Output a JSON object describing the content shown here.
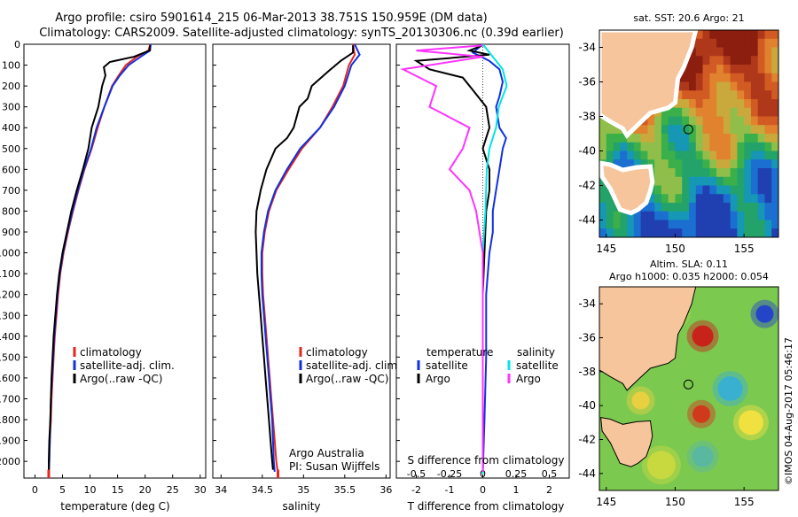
{
  "header": {
    "line1": "Argo profile: csiro 5901614_215 06-Mar-2013 38.751S 150.959E (DM data)",
    "line2": "Climatology: CARS2009. Satellite-adjusted climatology: synTS_20130306.nc (0.39d earlier)"
  },
  "colors": {
    "climatology": "#e8251c",
    "satellite": "#1030e0",
    "argo": "#000000",
    "sat_salinity": "#00e5e5",
    "argo_salinity": "#ff33ff",
    "land": "#f7c59b"
  },
  "credits": {
    "line1": "Argo Australia",
    "line2": "PI: Susan Wijffels"
  },
  "stamp": "©IMOS 04-Aug-2017 05:46:17",
  "chart_data": [
    {
      "type": "line",
      "xlabel": "temperature (deg C)",
      "xticks": [
        "0",
        "5",
        "10",
        "15",
        "20",
        "25",
        "30"
      ],
      "xlim": [
        -2,
        31
      ],
      "ylim": [
        0,
        2080
      ],
      "yticks": [
        "0",
        "100",
        "200",
        "300",
        "400",
        "500",
        "600",
        "700",
        "800",
        "900",
        "1000",
        "1100",
        "1200",
        "1300",
        "1400",
        "1500",
        "1600",
        "1700",
        "1800",
        "1900",
        "2000"
      ],
      "legend": [
        "climatology",
        "satellite-adj. clim.",
        "Argo(..raw -QC)"
      ],
      "series": [
        {
          "name": "climatology",
          "color": "#e8251c",
          "points": [
            [
              20.9,
              0
            ],
            [
              20.6,
              30
            ],
            [
              18.5,
              60
            ],
            [
              16.5,
              100
            ],
            [
              15.2,
              150
            ],
            [
              14.0,
              200
            ],
            [
              12.6,
              300
            ],
            [
              11.4,
              400
            ],
            [
              10.3,
              500
            ],
            [
              9.0,
              600
            ],
            [
              7.9,
              700
            ],
            [
              6.9,
              800
            ],
            [
              6.0,
              900
            ],
            [
              5.2,
              1000
            ],
            [
              4.6,
              1100
            ],
            [
              4.2,
              1200
            ],
            [
              3.9,
              1300
            ],
            [
              3.6,
              1400
            ],
            [
              3.4,
              1500
            ],
            [
              3.2,
              1600
            ],
            [
              3.0,
              1700
            ],
            [
              2.9,
              1800
            ],
            [
              2.7,
              1900
            ],
            [
              2.6,
              2000
            ],
            [
              2.5,
              2060
            ]
          ]
        },
        {
          "name": "satellite-adj. clim.",
          "color": "#1030e0",
          "points": [
            [
              21.0,
              0
            ],
            [
              20.9,
              30
            ],
            [
              19.2,
              60
            ],
            [
              17.0,
              100
            ],
            [
              15.4,
              150
            ],
            [
              14.1,
              200
            ],
            [
              12.6,
              300
            ],
            [
              11.2,
              400
            ],
            [
              10.2,
              500
            ],
            [
              8.9,
              600
            ],
            [
              7.8,
              700
            ],
            [
              6.8,
              800
            ],
            [
              5.9,
              900
            ],
            [
              5.1,
              1000
            ],
            [
              4.5,
              1100
            ],
            [
              4.1,
              1200
            ],
            [
              3.8,
              1300
            ],
            [
              3.5,
              1400
            ],
            [
              3.3,
              1500
            ],
            [
              3.1,
              1600
            ],
            [
              2.9,
              1700
            ],
            [
              2.8,
              1800
            ],
            [
              2.7,
              1900
            ],
            [
              2.6,
              2000
            ],
            [
              2.5,
              2060
            ]
          ]
        },
        {
          "name": "Argo(..raw -QC)",
          "color": "#000000",
          "points": [
            [
              20.9,
              5
            ],
            [
              20.8,
              30
            ],
            [
              18.0,
              60
            ],
            [
              13.6,
              85
            ],
            [
              12.5,
              110
            ],
            [
              12.8,
              150
            ],
            [
              12.2,
              200
            ],
            [
              11.5,
              300
            ],
            [
              10.3,
              400
            ],
            [
              9.7,
              500
            ],
            [
              8.7,
              600
            ],
            [
              7.6,
              700
            ],
            [
              6.6,
              800
            ],
            [
              5.8,
              900
            ],
            [
              5.0,
              1000
            ],
            [
              4.4,
              1100
            ],
            [
              4.0,
              1200
            ],
            [
              3.7,
              1300
            ],
            [
              3.4,
              1400
            ],
            [
              3.2,
              1500
            ],
            [
              3.0,
              1600
            ],
            [
              2.9,
              1700
            ],
            [
              2.8,
              1800
            ],
            [
              2.6,
              1900
            ],
            [
              2.5,
              2000
            ],
            [
              2.5,
              2050
            ]
          ]
        }
      ]
    },
    {
      "type": "line",
      "xlabel": "salinity",
      "xticks": [
        "34",
        "34.5",
        "35",
        "35.5",
        "36"
      ],
      "xlim": [
        33.9,
        36.05
      ],
      "ylim": [
        0,
        2080
      ],
      "legend": [
        "climatology",
        "satellite-adj. clim.",
        "Argo(..raw -QC)"
      ],
      "series": [
        {
          "name": "climatology",
          "color": "#e8251c",
          "points": [
            [
              35.6,
              0
            ],
            [
              35.62,
              50
            ],
            [
              35.55,
              100
            ],
            [
              35.48,
              200
            ],
            [
              35.35,
              300
            ],
            [
              35.2,
              400
            ],
            [
              34.98,
              500
            ],
            [
              34.82,
              600
            ],
            [
              34.67,
              700
            ],
            [
              34.58,
              800
            ],
            [
              34.53,
              900
            ],
            [
              34.5,
              1000
            ],
            [
              34.5,
              1100
            ],
            [
              34.51,
              1200
            ],
            [
              34.53,
              1300
            ],
            [
              34.55,
              1400
            ],
            [
              34.57,
              1500
            ],
            [
              34.59,
              1600
            ],
            [
              34.61,
              1700
            ],
            [
              34.63,
              1800
            ],
            [
              34.65,
              1900
            ],
            [
              34.67,
              2000
            ],
            [
              34.69,
              2060
            ]
          ]
        },
        {
          "name": "satellite-adj. clim.",
          "color": "#1030e0",
          "points": [
            [
              35.62,
              0
            ],
            [
              35.68,
              50
            ],
            [
              35.58,
              100
            ],
            [
              35.5,
              200
            ],
            [
              35.37,
              300
            ],
            [
              35.2,
              400
            ],
            [
              34.96,
              500
            ],
            [
              34.8,
              600
            ],
            [
              34.66,
              700
            ],
            [
              34.57,
              800
            ],
            [
              34.52,
              900
            ],
            [
              34.49,
              1000
            ],
            [
              34.49,
              1100
            ],
            [
              34.5,
              1200
            ],
            [
              34.52,
              1300
            ],
            [
              34.54,
              1400
            ],
            [
              34.56,
              1500
            ],
            [
              34.58,
              1600
            ],
            [
              34.6,
              1700
            ],
            [
              34.62,
              1800
            ],
            [
              34.63,
              1900
            ],
            [
              34.64,
              2000
            ],
            [
              34.65,
              2050
            ]
          ]
        },
        {
          "name": "Argo(..raw -QC)",
          "color": "#000000",
          "points": [
            [
              35.6,
              5
            ],
            [
              35.6,
              40
            ],
            [
              35.45,
              80
            ],
            [
              35.3,
              130
            ],
            [
              35.1,
              200
            ],
            [
              35.05,
              260
            ],
            [
              34.95,
              300
            ],
            [
              34.88,
              400
            ],
            [
              34.8,
              450
            ],
            [
              34.66,
              500
            ],
            [
              34.55,
              600
            ],
            [
              34.48,
              700
            ],
            [
              34.43,
              800
            ],
            [
              34.42,
              900
            ],
            [
              34.43,
              1000
            ],
            [
              34.44,
              1100
            ],
            [
              34.46,
              1200
            ],
            [
              34.48,
              1300
            ],
            [
              34.5,
              1400
            ],
            [
              34.52,
              1500
            ],
            [
              34.54,
              1600
            ],
            [
              34.56,
              1700
            ],
            [
              34.58,
              1800
            ],
            [
              34.6,
              1900
            ],
            [
              34.62,
              2000
            ],
            [
              34.63,
              2040
            ]
          ]
        }
      ]
    },
    {
      "type": "line",
      "xlabel": "T difference from climatology",
      "xlabel_top": "S difference from climatology",
      "xticks": [
        "-2",
        "-1",
        "0",
        "1",
        "2"
      ],
      "xticks_top": [
        "-0.5",
        "-0.25",
        "0",
        "0.25",
        "0.5"
      ],
      "xlim": [
        -2.6,
        2.6
      ],
      "ylim": [
        0,
        2080
      ],
      "legend_temperature": {
        "title": "temperature",
        "items": [
          "satellite",
          "Argo"
        ]
      },
      "legend_salinity": {
        "title": "salinity",
        "items": [
          "satellite",
          "Argo"
        ]
      },
      "series": [
        {
          "name": "satellite",
          "color": "#1030e0",
          "points": [
            [
              0.0,
              0
            ],
            [
              -0.3,
              40
            ],
            [
              0.2,
              80
            ],
            [
              0.5,
              120
            ],
            [
              0.6,
              180
            ],
            [
              0.5,
              250
            ],
            [
              0.4,
              300
            ],
            [
              0.5,
              400
            ],
            [
              0.7,
              450
            ],
            [
              0.6,
              500
            ],
            [
              0.5,
              600
            ],
            [
              0.4,
              700
            ],
            [
              0.3,
              800
            ],
            [
              0.3,
              900
            ],
            [
              0.2,
              1000
            ],
            [
              0.1,
              1200
            ],
            [
              0.1,
              1500
            ],
            [
              0.05,
              1800
            ],
            [
              0.0,
              2060
            ]
          ]
        },
        {
          "name": "Argo",
          "color": "#000000",
          "points": [
            [
              0.0,
              5
            ],
            [
              -0.4,
              30
            ],
            [
              0.2,
              50
            ],
            [
              -2.0,
              80
            ],
            [
              -1.6,
              120
            ],
            [
              -0.6,
              160
            ],
            [
              -0.3,
              220
            ],
            [
              0.1,
              300
            ],
            [
              0.2,
              400
            ],
            [
              0.0,
              500
            ],
            [
              0.2,
              600
            ],
            [
              0.2,
              700
            ],
            [
              0.1,
              800
            ],
            [
              0.05,
              1000
            ],
            [
              0.0,
              1200
            ],
            [
              0.0,
              1500
            ],
            [
              0.0,
              1800
            ],
            [
              0.0,
              2050
            ]
          ]
        },
        {
          "name": "satellite",
          "color": "#00e5e5",
          "points": [
            [
              0.0,
              0
            ],
            [
              0.05,
              40
            ],
            [
              0.1,
              80
            ],
            [
              0.15,
              120
            ],
            [
              0.18,
              200
            ],
            [
              0.12,
              300
            ],
            [
              0.1,
              400
            ],
            [
              0.05,
              500
            ],
            [
              0.03,
              600
            ],
            [
              0.02,
              800
            ],
            [
              0.0,
              1000
            ],
            [
              0.0,
              1500
            ],
            [
              0.0,
              2060
            ]
          ]
        },
        {
          "name": "Argo",
          "color": "#ff33ff",
          "points": [
            [
              0.0,
              5
            ],
            [
              -0.5,
              30
            ],
            [
              0.0,
              60
            ],
            [
              -0.6,
              120
            ],
            [
              -0.35,
              200
            ],
            [
              -0.4,
              300
            ],
            [
              -0.1,
              400
            ],
            [
              -0.15,
              500
            ],
            [
              -0.25,
              600
            ],
            [
              -0.1,
              700
            ],
            [
              -0.05,
              800
            ],
            [
              0.0,
              1000
            ],
            [
              0.0,
              1500
            ],
            [
              0.0,
              2050
            ]
          ]
        }
      ]
    }
  ],
  "maps": [
    {
      "title": "sat. SST: 20.6 Argo: 21",
      "xticks": [
        "145",
        "150",
        "155"
      ],
      "yticks": [
        "-34",
        "-36",
        "-38",
        "-40",
        "-42",
        "-44"
      ],
      "lon": [
        144.5,
        157.5
      ],
      "lat": [
        -45,
        -33
      ],
      "float": {
        "lon": 150.959,
        "lat": -38.751
      },
      "colors": [
        "#8b1e0f",
        "#b0381a",
        "#d25a23",
        "#e0822e",
        "#c9a93c",
        "#8fbf4a",
        "#3bb04a",
        "#23a36a",
        "#1597b5",
        "#1a6fd0",
        "#203fb0"
      ]
    },
    {
      "title_line1": "Altim. SLA: 0.11",
      "title_line2": "Argo h1000: 0.035 h2000: 0.054",
      "xticks": [
        "145",
        "150",
        "155"
      ],
      "yticks": [
        "-34",
        "-36",
        "-38",
        "-40",
        "-42",
        "-44"
      ],
      "lon": [
        144.5,
        157.5
      ],
      "lat": [
        -45,
        -33
      ],
      "float": {
        "lon": 150.959,
        "lat": -38.751
      }
    }
  ]
}
